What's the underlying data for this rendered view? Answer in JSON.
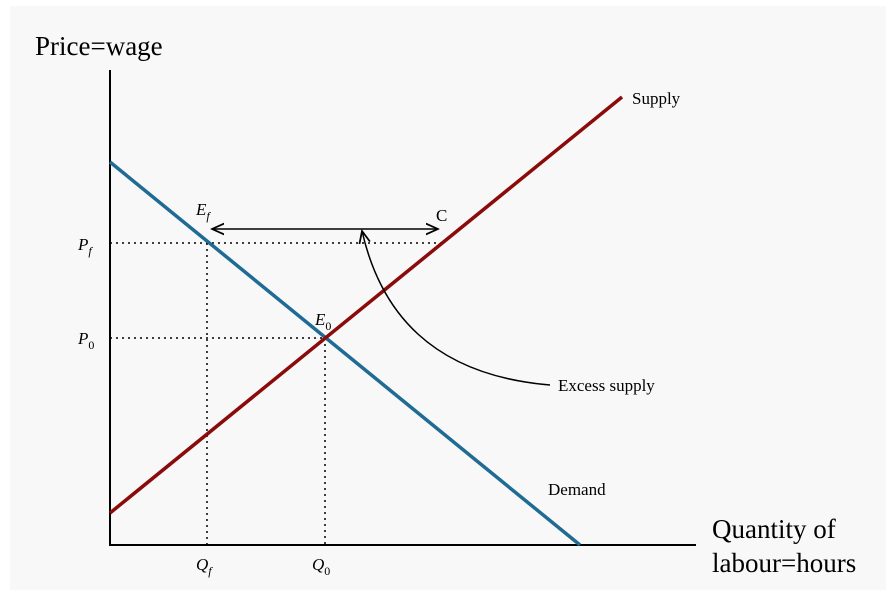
{
  "axes": {
    "y_label": "Price=wage",
    "x_label_line1": "Quantity of",
    "x_label_line2": "labour=hours"
  },
  "curves": {
    "supply": "Supply",
    "demand": "Demand",
    "excess": "Excess supply"
  },
  "points": {
    "c": "C",
    "ef": {
      "base": "E",
      "sub": "f"
    },
    "e0": {
      "base": "E",
      "sub": "0"
    },
    "pf": {
      "base": "P",
      "sub": "f"
    },
    "p0": {
      "base": "P",
      "sub": "0"
    },
    "qf": {
      "base": "Q",
      "sub": "f"
    },
    "q0": {
      "base": "Q",
      "sub": "0"
    }
  }
}
